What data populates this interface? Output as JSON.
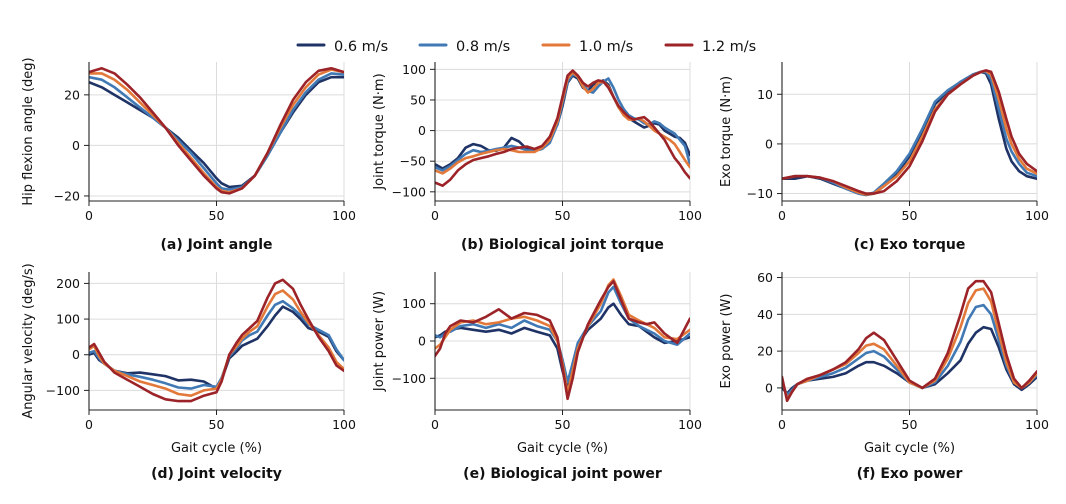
{
  "colors": {
    "s06": "#1f3366",
    "s08": "#4179b5",
    "s10": "#e2793a",
    "s12": "#9c2328"
  },
  "legend": [
    {
      "label": "0.6 m/s",
      "color": "#1f3366"
    },
    {
      "label": "0.8 m/s",
      "color": "#4179b5"
    },
    {
      "label": "1.0 m/s",
      "color": "#e2793a"
    },
    {
      "label": "1.2 m/s",
      "color": "#9c2328"
    }
  ],
  "chart_data": [
    {
      "type": "line",
      "title": "(a) Joint angle",
      "xlabel": "",
      "ylabel": "Hip flexion angle (deg)",
      "xlim": [
        0,
        100
      ],
      "ylim": [
        -22,
        33
      ],
      "xticks": [
        0,
        50,
        100
      ],
      "yticks": [
        -20,
        0,
        20
      ],
      "grid": true,
      "x": [
        0,
        5,
        10,
        15,
        20,
        25,
        30,
        35,
        40,
        45,
        50,
        52,
        55,
        60,
        65,
        70,
        75,
        80,
        85,
        90,
        95,
        100
      ],
      "series": [
        {
          "name": "0.6 m/s",
          "values": [
            25,
            23,
            20,
            17,
            14,
            11,
            7,
            3,
            -2,
            -7,
            -13,
            -15,
            -16.5,
            -16,
            -12,
            -4,
            5,
            13,
            20,
            25,
            27,
            27
          ]
        },
        {
          "name": "0.8 m/s",
          "values": [
            27,
            26,
            23,
            19,
            15,
            11,
            7,
            2,
            -3,
            -9,
            -15,
            -17,
            -17.5,
            -16.5,
            -12,
            -4,
            5,
            14,
            21,
            26,
            28.5,
            28
          ]
        },
        {
          "name": "1.0 m/s",
          "values": [
            28.5,
            28.5,
            26,
            22,
            17,
            12,
            7,
            1,
            -5,
            -11,
            -16.5,
            -18,
            -18.5,
            -17,
            -12,
            -3,
            7,
            16,
            23,
            28,
            30,
            29
          ]
        },
        {
          "name": "1.2 m/s",
          "values": [
            29,
            30.5,
            28.5,
            24,
            19,
            13,
            7,
            0,
            -6,
            -12,
            -17,
            -18.5,
            -19,
            -17,
            -12,
            -3,
            8,
            18,
            25,
            29.5,
            30.5,
            29
          ]
        }
      ]
    },
    {
      "type": "line",
      "title": "(b) Biological joint torque",
      "xlabel": "",
      "ylabel": "Joint torque (N·m)",
      "xlim": [
        0,
        100
      ],
      "ylim": [
        -115,
        112
      ],
      "xticks": [
        0,
        50,
        100
      ],
      "yticks": [
        -100,
        -50,
        0,
        50,
        100
      ],
      "grid": true,
      "x": [
        0,
        3,
        6,
        9,
        12,
        15,
        18,
        21,
        24,
        27,
        30,
        33,
        36,
        39,
        42,
        45,
        48,
        50,
        52,
        54,
        56,
        58,
        60,
        62,
        64,
        66,
        68,
        70,
        72,
        74,
        76,
        78,
        80,
        82,
        84,
        86,
        88,
        90,
        92,
        94,
        96,
        98,
        100
      ],
      "series": [
        {
          "name": "0.6 m/s",
          "values": [
            -55,
            -62,
            -55,
            -45,
            -28,
            -22,
            -25,
            -32,
            -33,
            -28,
            -12,
            -18,
            -30,
            -32,
            -28,
            -15,
            10,
            40,
            78,
            90,
            85,
            70,
            65,
            75,
            78,
            82,
            75,
            55,
            38,
            28,
            20,
            15,
            10,
            5,
            8,
            12,
            10,
            0,
            -5,
            -10,
            -12,
            -20,
            -40
          ]
        },
        {
          "name": "0.8 m/s",
          "values": [
            -60,
            -65,
            -58,
            -48,
            -38,
            -32,
            -35,
            -33,
            -30,
            -28,
            -25,
            -28,
            -32,
            -33,
            -30,
            -20,
            10,
            45,
            80,
            92,
            88,
            75,
            65,
            62,
            72,
            80,
            85,
            70,
            50,
            35,
            25,
            20,
            18,
            12,
            10,
            15,
            12,
            5,
            0,
            -5,
            -15,
            -25,
            -55
          ]
        },
        {
          "name": "1.0 m/s",
          "values": [
            -65,
            -70,
            -62,
            -52,
            -45,
            -42,
            -38,
            -35,
            -32,
            -30,
            -32,
            -35,
            -35,
            -35,
            -28,
            -15,
            15,
            50,
            85,
            95,
            88,
            72,
            62,
            68,
            78,
            80,
            72,
            55,
            38,
            25,
            18,
            18,
            20,
            15,
            8,
            0,
            -5,
            -10,
            -15,
            -22,
            -35,
            -48,
            -60
          ]
        },
        {
          "name": "1.2 m/s",
          "values": [
            -85,
            -90,
            -80,
            -65,
            -55,
            -48,
            -45,
            -42,
            -38,
            -35,
            -30,
            -28,
            -26,
            -30,
            -25,
            -10,
            20,
            55,
            90,
            98,
            90,
            78,
            72,
            78,
            82,
            80,
            70,
            55,
            40,
            30,
            22,
            18,
            20,
            22,
            15,
            5,
            -5,
            -15,
            -30,
            -45,
            -55,
            -68,
            -78
          ]
        }
      ]
    },
    {
      "type": "line",
      "title": "(c) Exo torque",
      "xlabel": "",
      "ylabel": "Exo torque (N·m)",
      "xlim": [
        0,
        100
      ],
      "ylim": [
        -11.5,
        16.5
      ],
      "xticks": [
        0,
        50,
        100
      ],
      "yticks": [
        -10,
        0,
        10
      ],
      "grid": true,
      "x": [
        0,
        5,
        10,
        15,
        20,
        25,
        30,
        33,
        36,
        40,
        45,
        50,
        55,
        60,
        65,
        70,
        75,
        78,
        80,
        82,
        85,
        88,
        90,
        93,
        96,
        100
      ],
      "series": [
        {
          "name": "0.6 m/s",
          "values": [
            -7,
            -7,
            -6.5,
            -7,
            -8,
            -9,
            -10,
            -10.3,
            -10,
            -8.5,
            -6,
            -2.5,
            2.5,
            8,
            10.5,
            12.5,
            14,
            14.5,
            14.2,
            12,
            5,
            -1,
            -3.5,
            -5.5,
            -6.5,
            -7
          ]
        },
        {
          "name": "0.8 m/s",
          "values": [
            -7,
            -6.5,
            -6.5,
            -6.8,
            -7.8,
            -9,
            -10,
            -10.2,
            -9.8,
            -8,
            -5.5,
            -2,
            3,
            8.5,
            10.8,
            12.5,
            14,
            14.5,
            14.5,
            13,
            7,
            1,
            -1.5,
            -4,
            -5.8,
            -6.5
          ]
        },
        {
          "name": "1.0 m/s",
          "values": [
            -7,
            -6.5,
            -6.5,
            -6.8,
            -7.5,
            -8.8,
            -9.8,
            -10.2,
            -10,
            -8.5,
            -6.5,
            -3.5,
            1.5,
            7,
            10,
            12,
            13.8,
            14.5,
            14.7,
            14,
            9,
            3,
            0,
            -3,
            -5,
            -6
          ]
        },
        {
          "name": "1.2 m/s",
          "values": [
            -7,
            -6.5,
            -6.5,
            -6.8,
            -7.5,
            -8.5,
            -9.5,
            -10,
            -10,
            -9.5,
            -7.5,
            -4.5,
            0.5,
            6.5,
            10,
            12,
            13.8,
            14.5,
            14.8,
            14.5,
            10.5,
            5,
            1.5,
            -2,
            -4,
            -5.5
          ]
        }
      ]
    },
    {
      "type": "line",
      "title": "(d) Joint velocity",
      "xlabel": "Gait cycle (%)",
      "ylabel": "Angular velocity (deg/s)",
      "xlim": [
        0,
        100
      ],
      "ylim": [
        -155,
        232
      ],
      "xticks": [
        0,
        50,
        100
      ],
      "yticks": [
        -100,
        0,
        100,
        200
      ],
      "grid": true,
      "x": [
        0,
        2,
        4,
        6,
        10,
        15,
        20,
        25,
        30,
        35,
        40,
        45,
        50,
        52,
        55,
        58,
        60,
        63,
        66,
        70,
        73,
        76,
        80,
        83,
        86,
        90,
        94,
        97,
        100
      ],
      "series": [
        {
          "name": "0.6 m/s",
          "values": [
            0,
            5,
            -15,
            -25,
            -45,
            -52,
            -50,
            -55,
            -60,
            -72,
            -70,
            -75,
            -95,
            -70,
            -10,
            10,
            25,
            35,
            45,
            80,
            110,
            135,
            120,
            100,
            75,
            65,
            50,
            10,
            -15
          ]
        },
        {
          "name": "0.8 m/s",
          "values": [
            5,
            10,
            -10,
            -25,
            -45,
            -55,
            -62,
            -70,
            -80,
            -92,
            -95,
            -85,
            -90,
            -65,
            -5,
            20,
            40,
            55,
            65,
            110,
            140,
            150,
            130,
            110,
            85,
            70,
            55,
            15,
            -15
          ]
        },
        {
          "name": "1.0 m/s",
          "values": [
            15,
            25,
            -5,
            -25,
            -45,
            -60,
            -75,
            -85,
            -95,
            -110,
            -115,
            -100,
            -95,
            -70,
            0,
            25,
            45,
            65,
            80,
            135,
            170,
            180,
            155,
            120,
            90,
            55,
            20,
            -20,
            -40
          ]
        },
        {
          "name": "1.2 m/s",
          "values": [
            20,
            30,
            5,
            -20,
            -50,
            -70,
            -90,
            -110,
            -125,
            -130,
            -130,
            -115,
            -105,
            -75,
            0,
            35,
            55,
            75,
            95,
            160,
            200,
            210,
            185,
            140,
            100,
            50,
            10,
            -30,
            -45
          ]
        }
      ]
    },
    {
      "type": "line",
      "title": "(e) Biological joint power",
      "xlabel": "Gait cycle (%)",
      "ylabel": "Joint power (W)",
      "xlim": [
        0,
        100
      ],
      "ylim": [
        -185,
        185
      ],
      "xticks": [
        0,
        50,
        100
      ],
      "yticks": [
        -100,
        0,
        100
      ],
      "grid": true,
      "x": [
        0,
        2,
        4,
        6,
        10,
        15,
        20,
        25,
        30,
        35,
        40,
        45,
        48,
        50,
        52,
        54,
        56,
        60,
        65,
        68,
        70,
        73,
        76,
        80,
        83,
        86,
        90,
        95,
        100
      ],
      "series": [
        {
          "name": "0.6 m/s",
          "values": [
            10,
            15,
            25,
            30,
            35,
            30,
            25,
            30,
            20,
            35,
            25,
            15,
            -20,
            -80,
            -130,
            -60,
            -10,
            30,
            60,
            90,
            100,
            70,
            45,
            40,
            25,
            10,
            -5,
            0,
            10
          ]
        },
        {
          "name": "0.8 m/s",
          "values": [
            15,
            10,
            20,
            25,
            40,
            45,
            35,
            45,
            35,
            55,
            40,
            30,
            0,
            -50,
            -110,
            -60,
            -5,
            40,
            80,
            130,
            145,
            100,
            60,
            40,
            30,
            20,
            0,
            -10,
            20
          ]
        },
        {
          "name": "1.0 m/s",
          "values": [
            -20,
            -10,
            10,
            30,
            50,
            55,
            45,
            50,
            60,
            65,
            55,
            40,
            0,
            -60,
            -140,
            -80,
            -20,
            40,
            100,
            150,
            165,
            120,
            70,
            55,
            45,
            35,
            10,
            5,
            30
          ]
        },
        {
          "name": "1.2 m/s",
          "values": [
            -40,
            -20,
            20,
            40,
            55,
            50,
            65,
            85,
            60,
            75,
            70,
            55,
            10,
            -70,
            -155,
            -100,
            -30,
            45,
            110,
            145,
            160,
            110,
            60,
            50,
            45,
            50,
            20,
            -5,
            60
          ]
        }
      ]
    },
    {
      "type": "line",
      "title": "(f) Exo power",
      "xlabel": "Gait cycle (%)",
      "ylabel": "Exo power (W)",
      "xlim": [
        0,
        100
      ],
      "ylim": [
        -12,
        63
      ],
      "xticks": [
        0,
        50,
        100
      ],
      "yticks": [
        0,
        20,
        40,
        60
      ],
      "grid": true,
      "x": [
        0,
        2,
        4,
        6,
        10,
        15,
        20,
        25,
        30,
        33,
        36,
        40,
        45,
        50,
        55,
        60,
        65,
        70,
        73,
        76,
        79,
        82,
        85,
        88,
        91,
        94,
        97,
        100
      ],
      "series": [
        {
          "name": "0.6 m/s",
          "values": [
            0,
            -3,
            0,
            2,
            4,
            5,
            6,
            8,
            12,
            14,
            14,
            12,
            8,
            3,
            0,
            2,
            8,
            15,
            24,
            30,
            33,
            32,
            22,
            10,
            2,
            -1,
            2,
            6
          ]
        },
        {
          "name": "0.8 m/s",
          "values": [
            3,
            -4,
            -1,
            2,
            4,
            6,
            8,
            11,
            16,
            19,
            20,
            17,
            10,
            3,
            0,
            3,
            12,
            25,
            37,
            44,
            45,
            40,
            26,
            12,
            3,
            0,
            3,
            7
          ]
        },
        {
          "name": "1.0 m/s",
          "values": [
            5,
            -6,
            -2,
            2,
            4,
            7,
            10,
            13,
            19,
            23,
            24,
            21,
            12,
            3,
            0,
            4,
            16,
            33,
            46,
            53,
            54,
            47,
            30,
            14,
            3,
            0,
            3,
            8
          ]
        },
        {
          "name": "1.2 m/s",
          "values": [
            6,
            -7,
            -2,
            2,
            5,
            7,
            10,
            14,
            21,
            27,
            30,
            26,
            15,
            4,
            0,
            5,
            19,
            40,
            54,
            58,
            58,
            52,
            35,
            18,
            5,
            0,
            4,
            9
          ]
        }
      ]
    }
  ]
}
